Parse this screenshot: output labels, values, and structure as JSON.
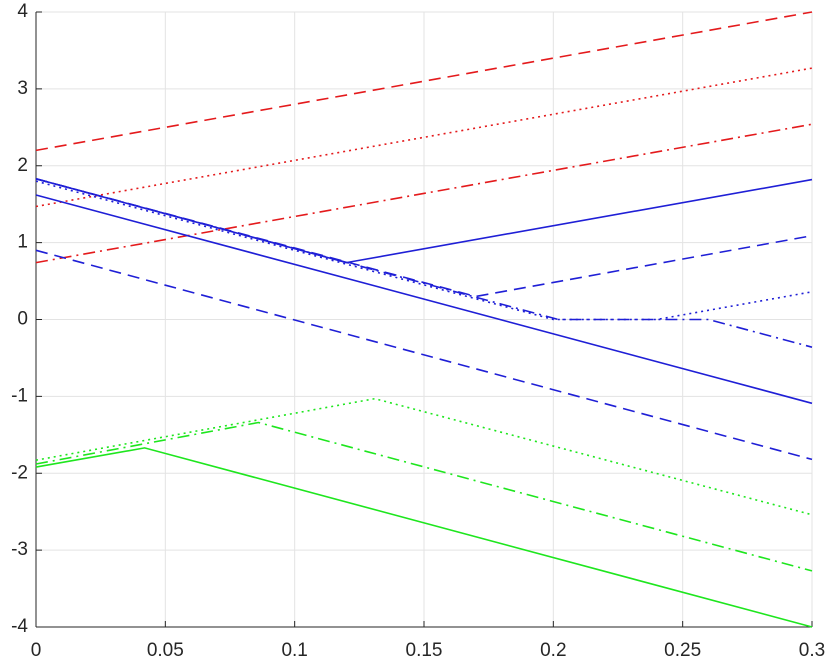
{
  "chart_data": {
    "type": "line",
    "xlim": [
      0,
      0.3
    ],
    "xticks": [
      0,
      0.05,
      0.1,
      0.15,
      0.2,
      0.25,
      0.3
    ],
    "ylim": [
      -4,
      4
    ],
    "yticks": [
      -4,
      -3,
      -2,
      -1,
      0,
      1,
      2,
      3,
      4
    ],
    "grid": true,
    "series": [
      {
        "color": "#e41a1c",
        "style": "dashed",
        "x": [
          0,
          0.3
        ],
        "values": [
          2.2,
          4.0
        ]
      },
      {
        "color": "#e41a1c",
        "style": "dotted",
        "x": [
          0,
          0.3
        ],
        "values": [
          1.47,
          3.27
        ]
      },
      {
        "color": "#e41a1c",
        "style": "dashdot",
        "x": [
          0,
          0.3
        ],
        "values": [
          0.74,
          2.54
        ]
      },
      {
        "color": "#1f1fd6",
        "style": "solid",
        "x": [
          0,
          0.3
        ],
        "values": [
          1.62,
          -1.09
        ]
      },
      {
        "color": "#1f1fd6",
        "style": "solid",
        "x": [
          0,
          0.12,
          0.3
        ],
        "values": [
          1.83,
          0.74,
          1.82
        ]
      },
      {
        "color": "#1f1fd6",
        "style": "dashed",
        "x": [
          0,
          0.3
        ],
        "values": [
          0.9,
          -1.82
        ]
      },
      {
        "color": "#1f1fd6",
        "style": "dashed",
        "x": [
          0,
          0.17,
          0.3
        ],
        "values": [
          1.83,
          0.3,
          1.09
        ]
      },
      {
        "color": "#1f1fd6",
        "style": "dashdot",
        "x": [
          0,
          0.202,
          0.26,
          0.3
        ],
        "values": [
          1.83,
          0,
          0,
          -0.36
        ]
      },
      {
        "color": "#1f1fd6",
        "style": "dotted",
        "x": [
          0,
          0.2,
          0.24,
          0.3
        ],
        "values": [
          1.8,
          0,
          0,
          0.36
        ]
      },
      {
        "color": "#1ee61e",
        "style": "solid",
        "x": [
          0,
          0.042,
          0.3
        ],
        "values": [
          -1.92,
          -1.67,
          -4.0
        ]
      },
      {
        "color": "#1ee61e",
        "style": "dashdot",
        "x": [
          0,
          0.086,
          0.3
        ],
        "values": [
          -1.88,
          -1.34,
          -3.27
        ]
      },
      {
        "color": "#1ee61e",
        "style": "dotted",
        "x": [
          0,
          0.131,
          0.3
        ],
        "values": [
          -1.83,
          -1.03,
          -2.54
        ]
      }
    ]
  }
}
